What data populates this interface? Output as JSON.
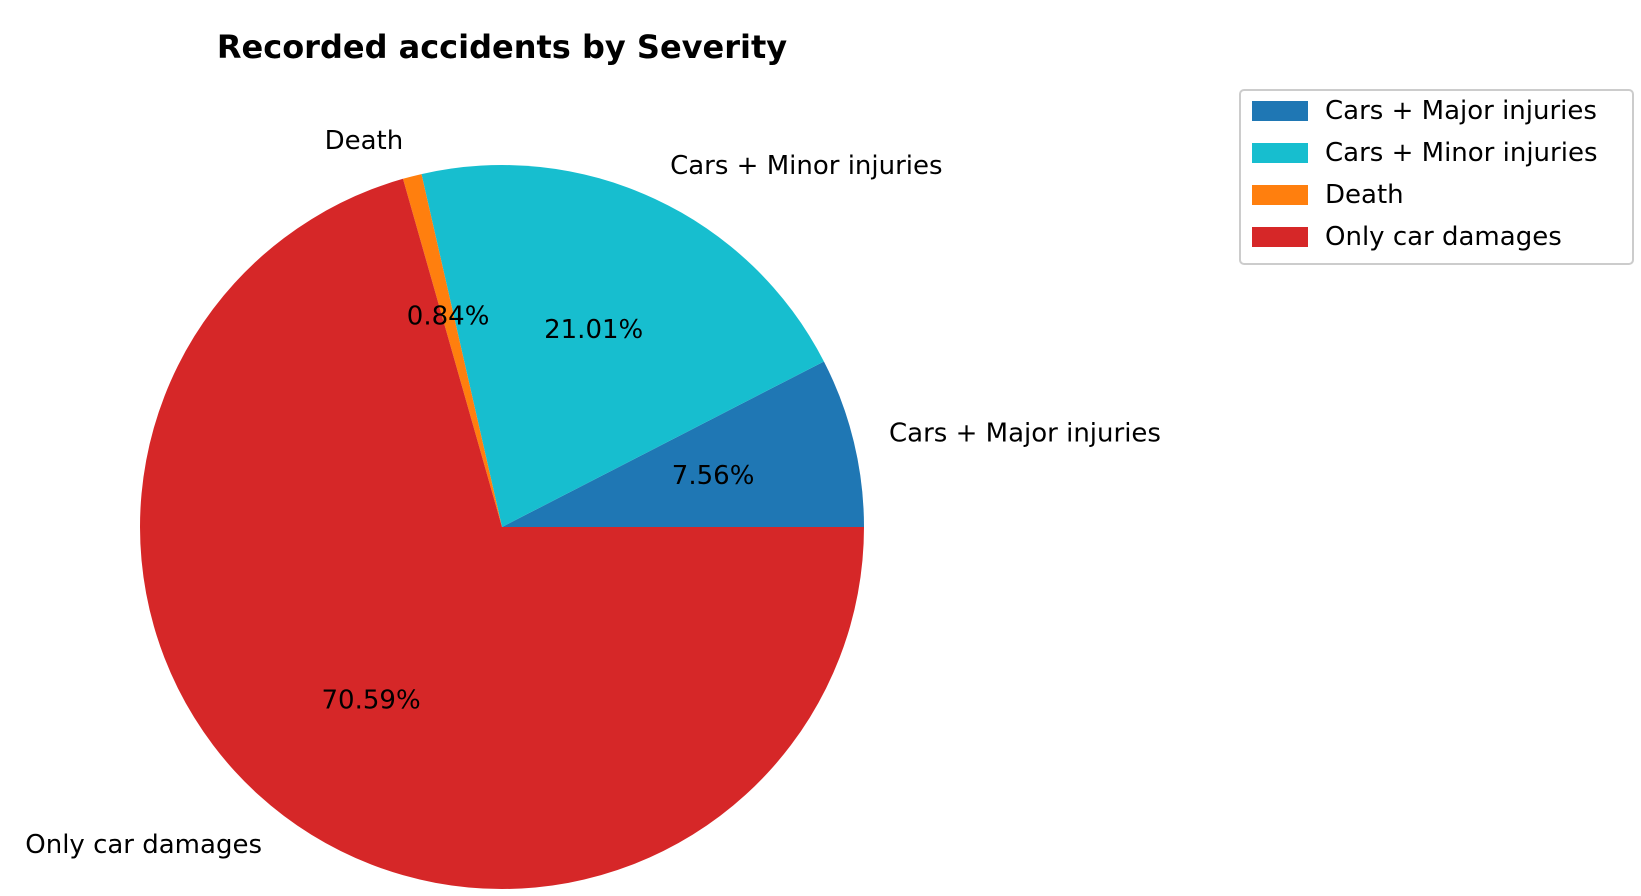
{
  "chart_data": {
    "type": "pie",
    "title": "Recorded accidents by Severity",
    "slices": [
      {
        "label": "Cars + Major injuries",
        "value": 7.56,
        "pct_label": "7.56%",
        "color": "#1f77b4"
      },
      {
        "label": "Cars + Minor injuries",
        "value": 21.01,
        "pct_label": "21.01%",
        "color": "#17becf"
      },
      {
        "label": "Death",
        "value": 0.84,
        "pct_label": "0.84%",
        "color": "#ff7f0e"
      },
      {
        "label": "Only car damages",
        "value": 70.59,
        "pct_label": "70.59%",
        "color": "#d62728"
      }
    ],
    "start_angle_deg": 0,
    "direction": "counterclockwise",
    "legend": {
      "placement": "top-right, outside",
      "entries": [
        "Cars + Major injuries",
        "Cars + Minor injuries",
        "Death",
        "Only car damages"
      ]
    }
  }
}
